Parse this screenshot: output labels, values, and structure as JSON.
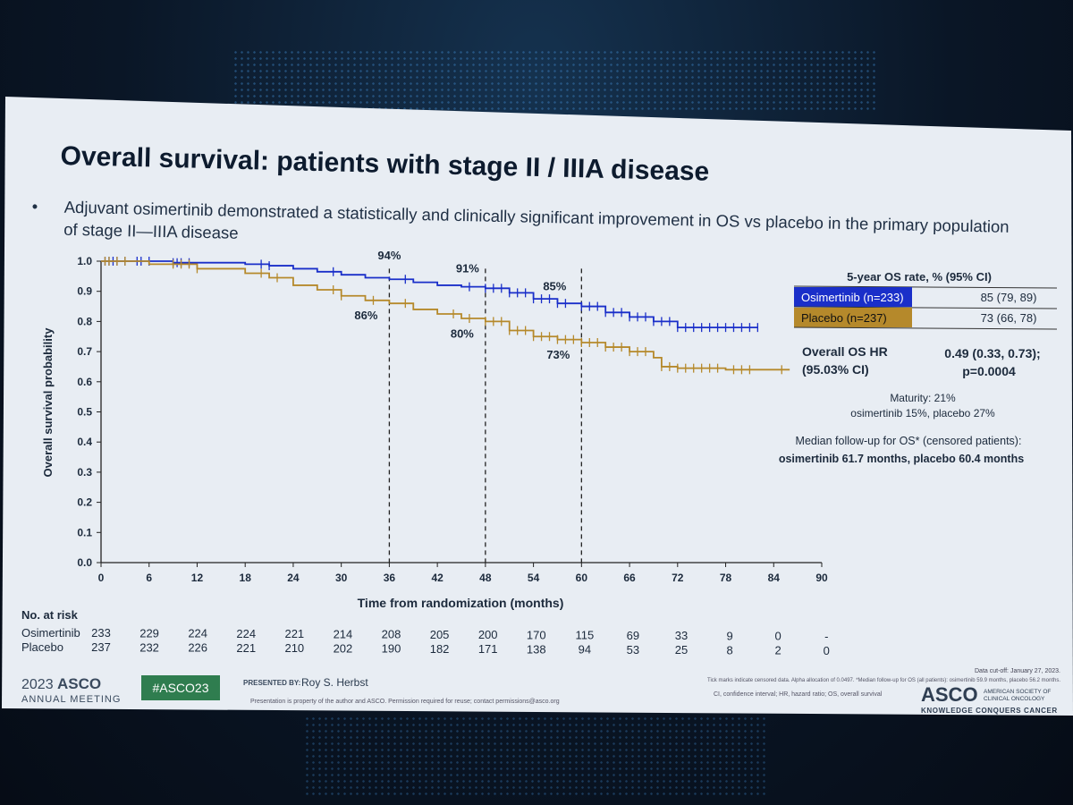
{
  "slide": {
    "title": "Overall survival: patients with stage II / IIIA disease",
    "bullet_marker": "•",
    "bullet": "Adjuvant osimertinib demonstrated a statistically and clinically significant improvement in OS vs placebo in the primary population of stage II—IIIA disease"
  },
  "colors": {
    "osimertinib": "#1a2fc9",
    "placebo": "#b5892b",
    "slide_bg": "#e7ecf2",
    "backdrop": "#0b1a2c"
  },
  "chart_data": {
    "type": "line",
    "title": "",
    "xlabel": "Time from randomization (months)",
    "ylabel": "Overall survival probability",
    "xlim": [
      0,
      90
    ],
    "ylim": [
      0,
      1
    ],
    "x_ticks": [
      "0",
      "6",
      "12",
      "18",
      "24",
      "30",
      "36",
      "42",
      "48",
      "54",
      "60",
      "66",
      "72",
      "78",
      "84",
      "90"
    ],
    "y_ticks": [
      "0.0",
      "0.1",
      "0.2",
      "0.3",
      "0.4",
      "0.5",
      "0.6",
      "0.7",
      "0.8",
      "0.9",
      "1.0"
    ],
    "reference_lines": [
      36,
      48,
      60
    ],
    "annotations": [
      {
        "label": "94%",
        "x": 36,
        "y": 0.94,
        "series": "Osimertinib"
      },
      {
        "label": "86%",
        "x": 36,
        "y": 0.86,
        "series": "Placebo"
      },
      {
        "label": "91%",
        "x": 48,
        "y": 0.91,
        "series": "Osimertinib"
      },
      {
        "label": "80%",
        "x": 48,
        "y": 0.8,
        "series": "Placebo"
      },
      {
        "label": "85%",
        "x": 60,
        "y": 0.85,
        "series": "Osimertinib"
      },
      {
        "label": "73%",
        "x": 60,
        "y": 0.73,
        "series": "Placebo"
      }
    ],
    "series": [
      {
        "name": "Osimertinib (n=233)",
        "color": "#1a2fc9",
        "points": [
          [
            0,
            1.0
          ],
          [
            3,
            1.0
          ],
          [
            9,
            0.995
          ],
          [
            18,
            0.99
          ],
          [
            21,
            0.985
          ],
          [
            24,
            0.975
          ],
          [
            27,
            0.965
          ],
          [
            30,
            0.955
          ],
          [
            33,
            0.945
          ],
          [
            36,
            0.94
          ],
          [
            39,
            0.93
          ],
          [
            42,
            0.92
          ],
          [
            45,
            0.915
          ],
          [
            48,
            0.91
          ],
          [
            51,
            0.895
          ],
          [
            54,
            0.875
          ],
          [
            57,
            0.86
          ],
          [
            60,
            0.85
          ],
          [
            63,
            0.83
          ],
          [
            66,
            0.815
          ],
          [
            69,
            0.8
          ],
          [
            72,
            0.78
          ],
          [
            75,
            0.78
          ],
          [
            78,
            0.78
          ],
          [
            81,
            0.78
          ],
          [
            82,
            0.78
          ]
        ],
        "censor_x": [
          0.5,
          1,
          1.5,
          2,
          3,
          4.5,
          5,
          6,
          9,
          9.5,
          10,
          11,
          20,
          21,
          29,
          38,
          46,
          48,
          49,
          50,
          51,
          52,
          53,
          54,
          55,
          56,
          57,
          58,
          60,
          61,
          62,
          63,
          64,
          65,
          66,
          67,
          68,
          69,
          70,
          71,
          72,
          73,
          74,
          75,
          76,
          77,
          78,
          79,
          80,
          81,
          82
        ]
      },
      {
        "name": "Placebo (n=237)",
        "color": "#b5892b",
        "points": [
          [
            0,
            1.0
          ],
          [
            6,
            0.99
          ],
          [
            12,
            0.975
          ],
          [
            18,
            0.96
          ],
          [
            21,
            0.945
          ],
          [
            24,
            0.92
          ],
          [
            27,
            0.905
          ],
          [
            30,
            0.885
          ],
          [
            33,
            0.87
          ],
          [
            36,
            0.86
          ],
          [
            39,
            0.84
          ],
          [
            42,
            0.825
          ],
          [
            45,
            0.81
          ],
          [
            48,
            0.8
          ],
          [
            51,
            0.77
          ],
          [
            54,
            0.75
          ],
          [
            57,
            0.74
          ],
          [
            60,
            0.73
          ],
          [
            63,
            0.715
          ],
          [
            66,
            0.7
          ],
          [
            69,
            0.68
          ],
          [
            70,
            0.65
          ],
          [
            72,
            0.645
          ],
          [
            78,
            0.64
          ],
          [
            84,
            0.64
          ],
          [
            86,
            0.64
          ]
        ],
        "censor_x": [
          0.5,
          1,
          2,
          3,
          9,
          10,
          11,
          12,
          20,
          22,
          29,
          30,
          34,
          38,
          44,
          46,
          48,
          49,
          50,
          51,
          52,
          53,
          54,
          55,
          56,
          57,
          58,
          59,
          60,
          61,
          62,
          63,
          64,
          65,
          66,
          67,
          68,
          70,
          71,
          72,
          73,
          74,
          75,
          76,
          77,
          79,
          80,
          81,
          85
        ]
      }
    ],
    "legend_title": "5-year OS rate, % (95% CI)",
    "legend": [
      {
        "name": "Osimertinib (n=233)",
        "value": "85 (79, 89)",
        "color": "#1a2fc9"
      },
      {
        "name": "Placebo (n=237)",
        "value": "73 (66, 78)",
        "color": "#b5892b"
      }
    ],
    "hr_label_1": "Overall OS HR",
    "hr_label_2": "(95.03% CI)",
    "hr_value_1": "0.49 (0.33, 0.73);",
    "hr_value_2": "p=0.0004",
    "maturity_1": "Maturity: 21%",
    "maturity_2": "osimertinib 15%, placebo 27%",
    "followup_1": "Median follow-up for OS* (censored patients):",
    "followup_2": "osimertinib 61.7 months, placebo 60.4 months"
  },
  "at_risk": {
    "header": "No. at risk",
    "rows": [
      {
        "label": "Osimertinib",
        "values": [
          "233",
          "229",
          "224",
          "224",
          "221",
          "214",
          "208",
          "205",
          "200",
          "170",
          "115",
          "69",
          "33",
          "9",
          "0",
          "-"
        ]
      },
      {
        "label": "Placebo",
        "values": [
          "237",
          "232",
          "226",
          "221",
          "210",
          "202",
          "190",
          "182",
          "171",
          "138",
          "94",
          "53",
          "25",
          "8",
          "2",
          "0"
        ]
      }
    ]
  },
  "footer": {
    "meeting_year": "2023",
    "meeting_brand": "ASCO",
    "meeting_sub": "ANNUAL MEETING",
    "hashtag": "#ASCO23",
    "presented_by_label": "PRESENTED BY:",
    "presenter": "Roy S. Herbst",
    "property_note": "Presentation is property of the author and ASCO. Permission required for reuse; contact permissions@asco.org",
    "cutoff": "Data cut-off: January 27, 2023.",
    "tick_note": "Tick marks indicate censored data. Alpha allocation of 0.0497. *Median follow-up for OS (all patients): osimertinib 59.9 months, placebo 56.2 months.",
    "abbrev": "CI, confidence interval; HR, hazard ratio; OS, overall survival",
    "asco_logo": "ASCO",
    "asco_society_1": "AMERICAN SOCIETY OF",
    "asco_society_2": "CLINICAL ONCOLOGY",
    "asco_tagline": "KNOWLEDGE CONQUERS CANCER"
  }
}
